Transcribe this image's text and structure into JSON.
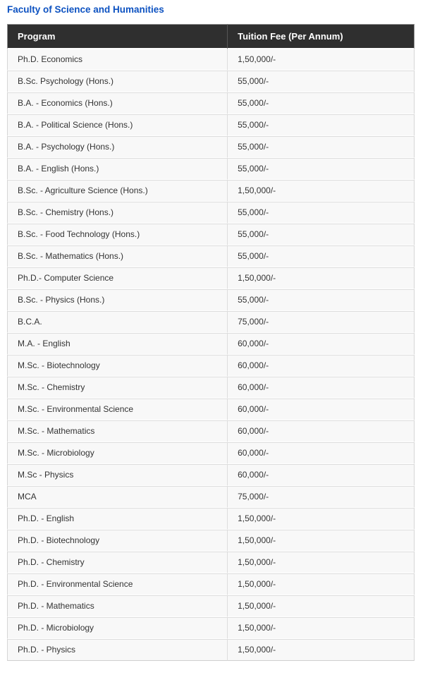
{
  "page": {
    "title": "Faculty of Science and Humanities"
  },
  "colors": {
    "title": "#0d52c1",
    "header_bg": "#2f2f2f",
    "header_text": "#ffffff",
    "row_bg": "#f8f8f8",
    "border": "#dddddd"
  },
  "table": {
    "columns": [
      "Program",
      "Tuition Fee (Per Annum)"
    ],
    "rows": [
      {
        "program": "Ph.D. Economics",
        "fee": "1,50,000/-"
      },
      {
        "program": "B.Sc. Psychology (Hons.)",
        "fee": "55,000/-"
      },
      {
        "program": "B.A. - Economics (Hons.)",
        "fee": "55,000/-"
      },
      {
        "program": "B.A. - Political Science (Hons.)",
        "fee": "55,000/-"
      },
      {
        "program": "B.A. - Psychology (Hons.)",
        "fee": "55,000/-"
      },
      {
        "program": "B.A. - English (Hons.)",
        "fee": "55,000/-"
      },
      {
        "program": "B.Sc. - Agriculture Science (Hons.)",
        "fee": "1,50,000/-"
      },
      {
        "program": "B.Sc. - Chemistry (Hons.)",
        "fee": "55,000/-"
      },
      {
        "program": "B.Sc. - Food Technology (Hons.)",
        "fee": "55,000/-"
      },
      {
        "program": "B.Sc. - Mathematics (Hons.)",
        "fee": "55,000/-"
      },
      {
        "program": "Ph.D.- Computer Science",
        "fee": "1,50,000/-"
      },
      {
        "program": "B.Sc. - Physics (Hons.)",
        "fee": "55,000/-"
      },
      {
        "program": "B.C.A.",
        "fee": "75,000/-"
      },
      {
        "program": "M.A. - English",
        "fee": "60,000/-"
      },
      {
        "program": "M.Sc. - Biotechnology",
        "fee": "60,000/-"
      },
      {
        "program": "M.Sc. - Chemistry",
        "fee": "60,000/-"
      },
      {
        "program": "M.Sc. - Environmental Science",
        "fee": "60,000/-"
      },
      {
        "program": "M.Sc. - Mathematics",
        "fee": "60,000/-"
      },
      {
        "program": "M.Sc. - Microbiology",
        "fee": "60,000/-"
      },
      {
        "program": "M.Sc - Physics",
        "fee": "60,000/-"
      },
      {
        "program": "MCA",
        "fee": "75,000/-"
      },
      {
        "program": "Ph.D. - English",
        "fee": "1,50,000/-"
      },
      {
        "program": "Ph.D. - Biotechnology",
        "fee": "1,50,000/-"
      },
      {
        "program": "Ph.D. - Chemistry",
        "fee": "1,50,000/-"
      },
      {
        "program": "Ph.D. - Environmental Science",
        "fee": "1,50,000/-"
      },
      {
        "program": "Ph.D. - Mathematics",
        "fee": "1,50,000/-"
      },
      {
        "program": "Ph.D. - Microbiology",
        "fee": "1,50,000/-"
      },
      {
        "program": "Ph.D. - Physics",
        "fee": "1,50,000/-"
      }
    ]
  }
}
